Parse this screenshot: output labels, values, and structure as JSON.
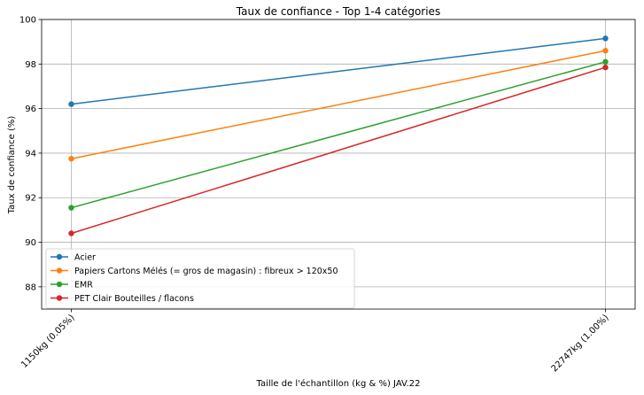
{
  "chart_data": {
    "type": "line",
    "title": "Taux de confiance - Top 1-4 catégories",
    "xlabel": "Taille de l'échantillon (kg & %) JAV.22",
    "ylabel": "Taux de confiance (%)",
    "categories": [
      "1150kg (0.05%)",
      "22747kg (1.00%)"
    ],
    "ylim": [
      87,
      100
    ],
    "yticks": [
      88,
      90,
      92,
      94,
      96,
      98,
      100
    ],
    "grid": true,
    "legend_position": "lower-left",
    "series": [
      {
        "name": "Acier",
        "values": [
          96.2,
          99.15
        ],
        "color": "#1f77b4"
      },
      {
        "name": "Papiers Cartons Mélés (= gros de magasin) : fibreux > 120x50",
        "values": [
          93.75,
          98.6
        ],
        "color": "#ff7f0e"
      },
      {
        "name": "EMR",
        "values": [
          91.55,
          98.1
        ],
        "color": "#2ca02c"
      },
      {
        "name": "PET Clair Bouteilles / flacons",
        "values": [
          90.4,
          97.85
        ],
        "color": "#d62728"
      }
    ]
  }
}
